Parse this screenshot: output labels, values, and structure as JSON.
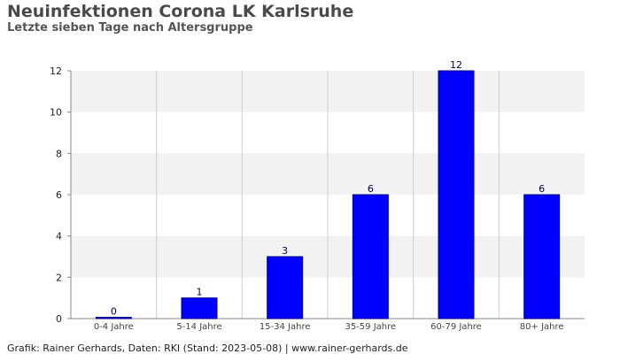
{
  "title": "Neuinfektionen Corona LK Karlsruhe",
  "subtitle": "Letzte sieben Tage nach Altersgruppe",
  "footer": "Grafik: Rainer Gerhards, Daten: RKI (Stand: 2023-05-08) | www.rainer-gerhards.de",
  "colors": {
    "bar": "#0000ff",
    "bar_edge": "#00008b",
    "band": "#f2f2f2",
    "grid_vertical": "#cccccc",
    "axis": "#888888"
  },
  "chart_data": {
    "type": "bar",
    "title": "Neuinfektionen Corona LK Karlsruhe",
    "subtitle": "Letzte sieben Tage nach Altersgruppe",
    "categories": [
      "0-4 Jahre",
      "5-14 Jahre",
      "15-34 Jahre",
      "35-59 Jahre",
      "60-79 Jahre",
      "80+ Jahre"
    ],
    "values": [
      0,
      1,
      3,
      6,
      12,
      6
    ],
    "xlabel": "",
    "ylabel": "",
    "ylim": [
      0,
      12
    ],
    "yticks": [
      0,
      2,
      4,
      6,
      8,
      10,
      12
    ],
    "grid": true,
    "data_labels": true
  }
}
